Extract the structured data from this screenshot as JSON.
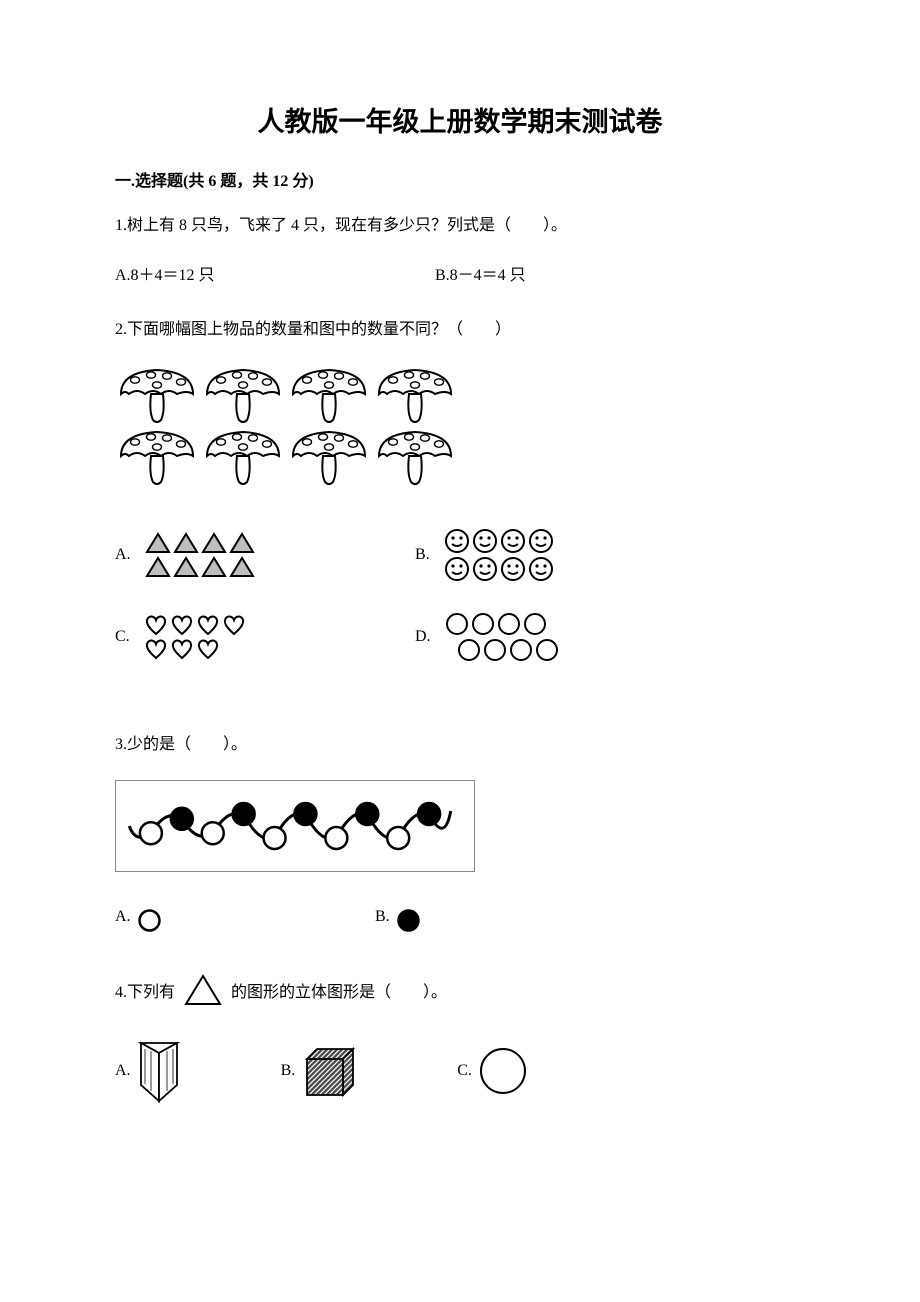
{
  "title": "人教版一年级上册数学期末测试卷",
  "section1": {
    "heading": "一.选择题(共 6 题，共 12 分)"
  },
  "q1": {
    "text": "1.树上有 8 只鸟，飞来了 4 只，现在有多少只？列式是（　　）。",
    "optA": "A.8＋4＝12 只",
    "optB": "B.8－4＝4 只"
  },
  "q2": {
    "text": "2.下面哪幅图上物品的数量和图中的数量不同？（　　）",
    "optA": "A.",
    "optB": "B.",
    "optC": "C.",
    "optD": "D.",
    "mushroom": {
      "rows": 2,
      "cols": 4,
      "cap_fill": "#ffffff",
      "cap_stroke": "#000000",
      "dot_fill": "#ffffff",
      "stem_fill": "#ffffff",
      "stem_stroke": "#000000"
    },
    "triangles": {
      "rows": 2,
      "cols": 4,
      "fill": "#bfbfbf",
      "stroke": "#000000"
    },
    "smileys": {
      "rows": 2,
      "cols": 4,
      "fill": "#ffffff",
      "stroke": "#000000"
    },
    "hearts": {
      "row1": 4,
      "row2": 3,
      "fill": "#ffffff",
      "stroke": "#000000"
    },
    "circles": {
      "row1": 4,
      "row2": 4,
      "fill": "#ffffff",
      "stroke": "#000000"
    }
  },
  "q3": {
    "text": "3.少的是（　　）。",
    "optA": "A.",
    "optB": "B.",
    "beads": {
      "pattern": [
        "w",
        "b",
        "w",
        "b",
        "w",
        "b",
        "w",
        "b",
        "w",
        "b"
      ],
      "white_fill": "#ffffff",
      "black_fill": "#000000",
      "stroke": "#000000"
    }
  },
  "q4": {
    "text_before": "4.下列有",
    "text_after": "的图形的立体图形是（　　）。",
    "optA": "A.",
    "optB": "B.",
    "optC": "C.",
    "triangle": {
      "fill": "#ffffff",
      "stroke": "#000000"
    },
    "prism": {
      "fill": "#ffffff",
      "stroke": "#000000"
    },
    "cube": {
      "fill": "#4a4a4a",
      "stroke": "#000000"
    },
    "sphere": {
      "fill": "#ffffff",
      "stroke": "#000000"
    }
  }
}
